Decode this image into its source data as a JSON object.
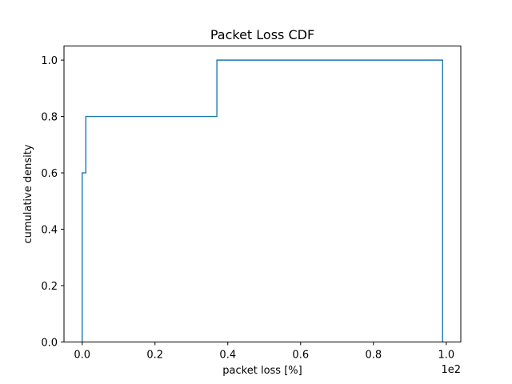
{
  "chart_data": {
    "type": "line",
    "drawstyle": "step",
    "title": "Packet Loss CDF",
    "xlabel": "packet loss [%]",
    "ylabel": "cumulative density",
    "x_offset_label": "1e2",
    "xlim": [
      -0.05,
      1.04
    ],
    "ylim": [
      0.0,
      1.05
    ],
    "xticks": [
      0.0,
      0.2,
      0.4,
      0.6,
      0.8,
      1.0
    ],
    "xtick_labels": [
      "0.0",
      "0.2",
      "0.4",
      "0.6",
      "0.8",
      "1.0"
    ],
    "yticks": [
      0.0,
      0.2,
      0.4,
      0.6,
      0.8,
      1.0
    ],
    "ytick_labels": [
      "0.0",
      "0.2",
      "0.4",
      "0.6",
      "0.8",
      "1.0"
    ],
    "grid": false,
    "series": [
      {
        "color": "#1f77b4",
        "x": [
          0.0,
          0.0,
          0.01,
          0.01,
          0.37,
          0.37,
          0.99,
          0.99
        ],
        "y": [
          0.0,
          0.6,
          0.6,
          0.8,
          0.8,
          1.0,
          1.0,
          0.0
        ]
      }
    ]
  }
}
